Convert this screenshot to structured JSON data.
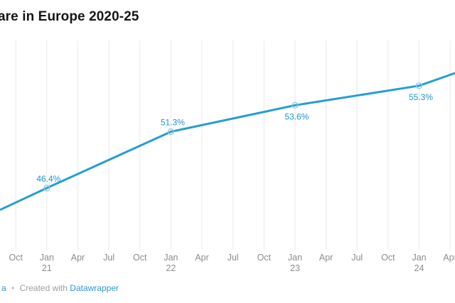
{
  "header": {
    "title_visible": "are in Europe 2020-25"
  },
  "footer": {
    "source_fragment": "a",
    "separator": "•",
    "created_with": "Created with",
    "datawrapper_link": "Datawrapper"
  },
  "chart_data": {
    "type": "line",
    "title": "are in Europe 2020-25",
    "unit": "%",
    "grid": "vertical-only",
    "legend": "none",
    "colors": {
      "line": "#259ed6",
      "data_label": "#1f95cc",
      "marker_stroke": "#8ecbe8",
      "gridline": "#e9e9e9",
      "tick_text": "#8c8c8c",
      "title_text": "#161616"
    },
    "x_ticks": [
      {
        "month": "Oct",
        "year": ""
      },
      {
        "month": "Jan",
        "year": "21"
      },
      {
        "month": "Apr",
        "year": ""
      },
      {
        "month": "Jul",
        "year": ""
      },
      {
        "month": "Oct",
        "year": ""
      },
      {
        "month": "Jan",
        "year": "22"
      },
      {
        "month": "Apr",
        "year": ""
      },
      {
        "month": "Jul",
        "year": ""
      },
      {
        "month": "Oct",
        "year": ""
      },
      {
        "month": "Jan",
        "year": "23"
      },
      {
        "month": "Apr",
        "year": ""
      },
      {
        "month": "Jul",
        "year": ""
      },
      {
        "month": "Oct",
        "year": ""
      },
      {
        "month": "Jan",
        "year": "24"
      },
      {
        "month": "Apr",
        "year": ""
      }
    ],
    "points": [
      {
        "date": "Jan 2021",
        "value": 46.4,
        "display": "46.4%",
        "tick_index": 1,
        "label_position": "above"
      },
      {
        "date": "Jan 2022",
        "value": 51.3,
        "display": "51.3%",
        "tick_index": 5,
        "label_position": "above"
      },
      {
        "date": "Jan 2023",
        "value": 53.6,
        "display": "53.6%",
        "tick_index": 9,
        "label_position": "below"
      },
      {
        "date": "Jan 2024",
        "value": 55.3,
        "display": "55.3%",
        "tick_index": 13,
        "label_position": "below"
      }
    ],
    "edges": {
      "left_value_est": 44.5,
      "right_value_est": 56.4,
      "note": "line is cropped at both sides of the viewport"
    },
    "ylim_visible_est": [
      44.5,
      56.4
    ],
    "x_range_visible": [
      "~Sep 2020",
      "~May 2024"
    ]
  }
}
